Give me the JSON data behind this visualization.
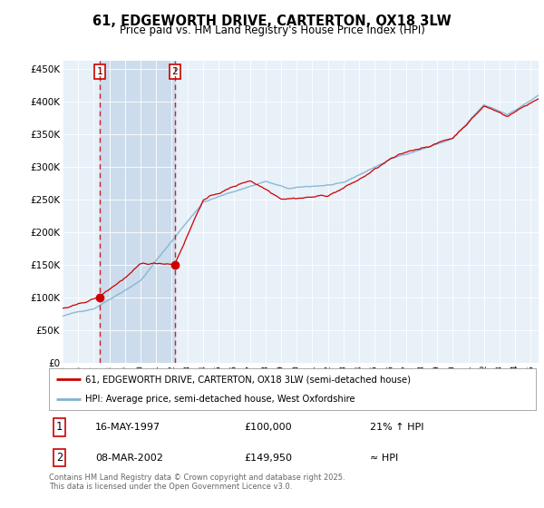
{
  "title": "61, EDGEWORTH DRIVE, CARTERTON, OX18 3LW",
  "subtitle": "Price paid vs. HM Land Registry's House Price Index (HPI)",
  "legend_line1": "61, EDGEWORTH DRIVE, CARTERTON, OX18 3LW (semi-detached house)",
  "legend_line2": "HPI: Average price, semi-detached house, West Oxfordshire",
  "sale1_date": "16-MAY-1997",
  "sale1_price": 100000,
  "sale1_label": "21% ↑ HPI",
  "sale1_year": 1997.37,
  "sale2_date": "08-MAR-2002",
  "sale2_price": 149950,
  "sale2_label": "≈ HPI",
  "sale2_year": 2002.19,
  "hpi_line_color": "#7fb3d3",
  "price_line_color": "#cc0000",
  "sale_dot_color": "#cc0000",
  "dashed_line_color": "#cc0000",
  "shaded_region_color": "#ccdcec",
  "background_color": "#ffffff",
  "plot_bg_color": "#e8f0f8",
  "footer": "Contains HM Land Registry data © Crown copyright and database right 2025.\nThis data is licensed under the Open Government Licence v3.0.",
  "ylim": [
    0,
    462000
  ],
  "yticks": [
    0,
    50000,
    100000,
    150000,
    200000,
    250000,
    300000,
    350000,
    400000,
    450000
  ],
  "xlim_start": 1995.0,
  "xlim_end": 2025.5
}
